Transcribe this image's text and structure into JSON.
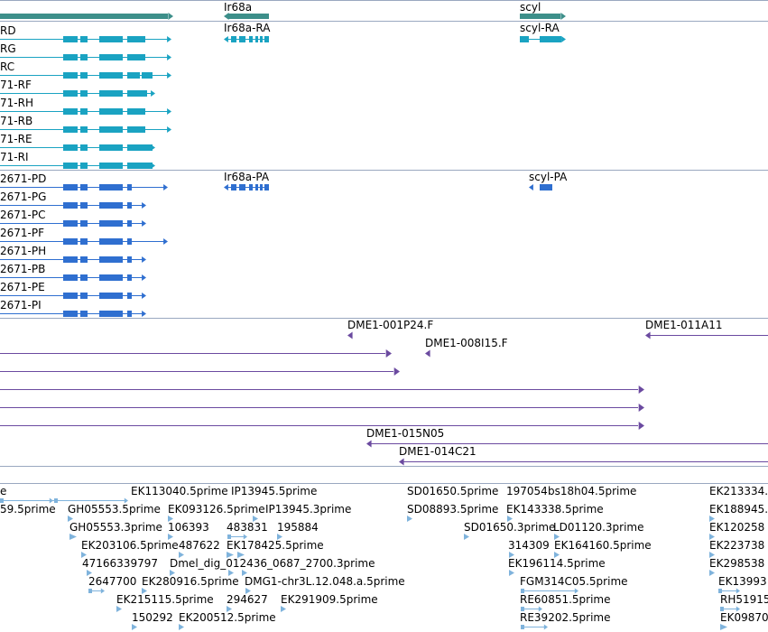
{
  "colors": {
    "gene": "#3d8f8a",
    "transcript": "#1aa3c2",
    "cds": "#2f6fd0",
    "clone": "#6b4aa0",
    "est": "#7fb3dc",
    "separator": "#9aa8c0"
  },
  "tracks": {
    "genes": {
      "items": [
        {
          "name": "gene-ir68a-label",
          "label": "Ir68a"
        },
        {
          "name": "gene-scyl-label",
          "label": "scyl"
        }
      ]
    },
    "transcripts": {
      "items": [
        {
          "name": "transcript-label-rd",
          "label": "RD"
        },
        {
          "name": "transcript-label-rg",
          "label": "RG"
        },
        {
          "name": "transcript-label-rc",
          "label": "RC"
        },
        {
          "name": "transcript-label-rf",
          "label": "71-RF"
        },
        {
          "name": "transcript-label-rh",
          "label": "71-RH"
        },
        {
          "name": "transcript-label-rb",
          "label": "71-RB"
        },
        {
          "name": "transcript-label-re",
          "label": "71-RE"
        },
        {
          "name": "transcript-label-ri",
          "label": "71-RI"
        },
        {
          "name": "transcript-label-ir68a-ra",
          "label": "Ir68a-RA"
        },
        {
          "name": "transcript-label-scyl-ra",
          "label": "scyl-RA"
        }
      ]
    },
    "cds": {
      "items": [
        {
          "name": "cds-label-pd",
          "label": "2671-PD"
        },
        {
          "name": "cds-label-pg",
          "label": "2671-PG"
        },
        {
          "name": "cds-label-pc",
          "label": "2671-PC"
        },
        {
          "name": "cds-label-pf",
          "label": "2671-PF"
        },
        {
          "name": "cds-label-ph",
          "label": "2671-PH"
        },
        {
          "name": "cds-label-pb",
          "label": "2671-PB"
        },
        {
          "name": "cds-label-pe",
          "label": "2671-PE"
        },
        {
          "name": "cds-label-pi",
          "label": "2671-PI"
        },
        {
          "name": "cds-label-ir68a-pa",
          "label": "Ir68a-PA"
        },
        {
          "name": "cds-label-scyl-pa",
          "label": "scyl-PA"
        }
      ]
    },
    "clones": {
      "items": [
        {
          "name": "clone-label-001p24",
          "label": "DME1-001P24.F"
        },
        {
          "name": "clone-label-011a11",
          "label": "DME1-011A11"
        },
        {
          "name": "clone-label-008i15",
          "label": "DME1-008I15.F"
        },
        {
          "name": "clone-label-015n05",
          "label": "DME1-015N05"
        },
        {
          "name": "clone-label-014c21",
          "label": "DME1-014C21"
        }
      ]
    },
    "ests": {
      "items": [
        {
          "name": "est-label-01",
          "label": "e"
        },
        {
          "name": "est-label-02",
          "label": "EK113040.5prime"
        },
        {
          "name": "est-label-03",
          "label": "IP13945.5prime"
        },
        {
          "name": "est-label-04",
          "label": "SD01650.5prime"
        },
        {
          "name": "est-label-05",
          "label": "197054"
        },
        {
          "name": "est-label-06",
          "label": "bs18h04.5prime"
        },
        {
          "name": "est-label-07",
          "label": "EK213334."
        },
        {
          "name": "est-label-08",
          "label": "59.5prime"
        },
        {
          "name": "est-label-09",
          "label": "GH05553.5prime"
        },
        {
          "name": "est-label-10",
          "label": "EK093126.5prime"
        },
        {
          "name": "est-label-11",
          "label": "IP13945.3prime"
        },
        {
          "name": "est-label-12",
          "label": "SD08893.5prime"
        },
        {
          "name": "est-label-13",
          "label": "EK143338.5prime"
        },
        {
          "name": "est-label-14",
          "label": "EK188945."
        },
        {
          "name": "est-label-15",
          "label": "GH05553.3prime"
        },
        {
          "name": "est-label-16",
          "label": "106393"
        },
        {
          "name": "est-label-17",
          "label": "483831"
        },
        {
          "name": "est-label-18",
          "label": "195884"
        },
        {
          "name": "est-label-19",
          "label": "SD01650.3prime"
        },
        {
          "name": "est-label-20",
          "label": "LD01120.3prime"
        },
        {
          "name": "est-label-21",
          "label": "EK120258"
        },
        {
          "name": "est-label-22",
          "label": "EK203106.5prime"
        },
        {
          "name": "est-label-23",
          "label": "487622"
        },
        {
          "name": "est-label-24",
          "label": "EK178425.5prime"
        },
        {
          "name": "est-label-25",
          "label": "314309"
        },
        {
          "name": "est-label-26",
          "label": "EK164160.5prime"
        },
        {
          "name": "est-label-27",
          "label": "EK223738"
        },
        {
          "name": "est-label-28",
          "label": "47166339797"
        },
        {
          "name": "est-label-29",
          "label": "Dmel_dig_012436_0687_2700.3prime"
        },
        {
          "name": "est-label-30",
          "label": "EK196114.5prime"
        },
        {
          "name": "est-label-31",
          "label": "EK298538"
        },
        {
          "name": "est-label-32",
          "label": "2647700"
        },
        {
          "name": "est-label-33",
          "label": "EK280916.5prime"
        },
        {
          "name": "est-label-34",
          "label": "DMG1-chr3L.12.048.a.5prime"
        },
        {
          "name": "est-label-35",
          "label": "FGM314C05.5prime"
        },
        {
          "name": "est-label-36",
          "label": "EK13993"
        },
        {
          "name": "est-label-37",
          "label": "EK215115.5prime"
        },
        {
          "name": "est-label-38",
          "label": "294627"
        },
        {
          "name": "est-label-39",
          "label": "EK291909.5prime"
        },
        {
          "name": "est-label-40",
          "label": "RE60851.5prime"
        },
        {
          "name": "est-label-41",
          "label": "RH51915"
        },
        {
          "name": "est-label-42",
          "label": "150292"
        },
        {
          "name": "est-label-43",
          "label": "EK200512.5prime"
        },
        {
          "name": "est-label-44",
          "label": "RE39202.5prime"
        },
        {
          "name": "est-label-45",
          "label": "EK09870"
        }
      ]
    }
  }
}
